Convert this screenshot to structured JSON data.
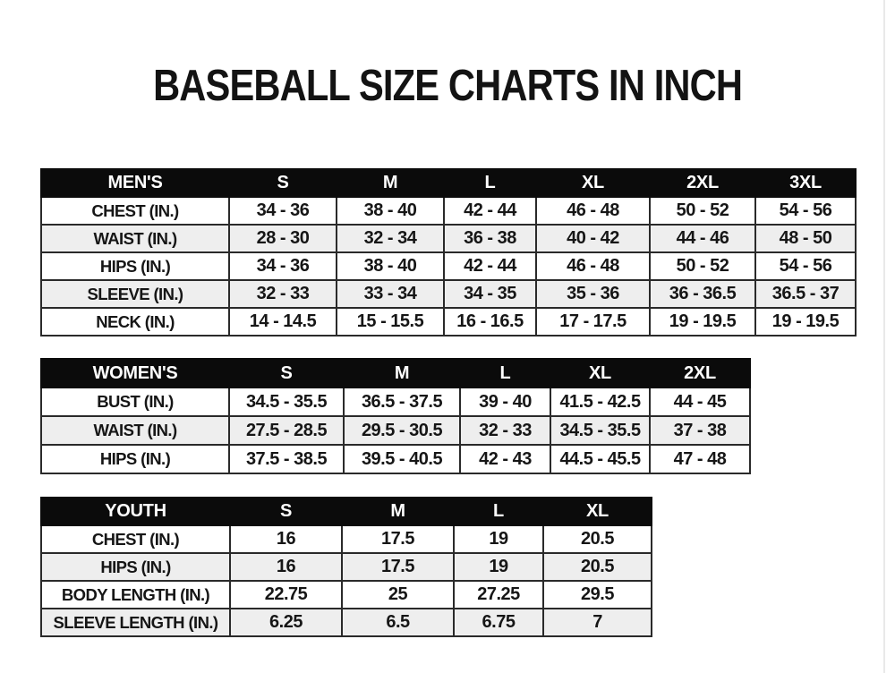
{
  "page": {
    "title": "BASEBALL SIZE CHARTS IN INCH"
  },
  "colors": {
    "header_bg": "#0b0b0b",
    "header_text": "#ffffff",
    "row_stripe": "#eeeeee",
    "border": "#2a2a2a",
    "text": "#161616",
    "background": "#ffffff"
  },
  "tables": [
    {
      "group": "MEN'S",
      "columns": [
        "MEN'S",
        "S",
        "M",
        "L",
        "XL",
        "2XL",
        "3XL"
      ],
      "rows": [
        [
          "CHEST (IN.)",
          "34 - 36",
          "38 - 40",
          "42 - 44",
          "46 - 48",
          "50 - 52",
          "54 - 56"
        ],
        [
          "WAIST (IN.)",
          "28 - 30",
          "32 - 34",
          "36 - 38",
          "40 - 42",
          "44 - 46",
          "48 - 50"
        ],
        [
          "HIPS (IN.)",
          "34 - 36",
          "38 - 40",
          "42 - 44",
          "46 - 48",
          "50 - 52",
          "54 - 56"
        ],
        [
          "SLEEVE (IN.)",
          "32 - 33",
          "33 - 34",
          "34 - 35",
          "35 - 36",
          "36 - 36.5",
          "36.5 - 37"
        ],
        [
          "NECK (IN.)",
          "14 - 14.5",
          "15 - 15.5",
          "16 - 16.5",
          "17 - 17.5",
          "19 - 19.5",
          "19 - 19.5"
        ]
      ]
    },
    {
      "group": "WOMEN'S",
      "columns": [
        "WOMEN'S",
        "S",
        "M",
        "L",
        "XL",
        "2XL"
      ],
      "rows": [
        [
          "BUST (IN.)",
          "34.5 - 35.5",
          "36.5 - 37.5",
          "39 - 40",
          "41.5 - 42.5",
          "44 - 45"
        ],
        [
          "WAIST (IN.)",
          "27.5 - 28.5",
          "29.5 - 30.5",
          "32 - 33",
          "34.5 - 35.5",
          "37 - 38"
        ],
        [
          "HIPS (IN.)",
          "37.5 - 38.5",
          "39.5 - 40.5",
          "42 - 43",
          "44.5 - 45.5",
          "47 - 48"
        ]
      ]
    },
    {
      "group": "YOUTH",
      "columns": [
        "YOUTH",
        "S",
        "M",
        "L",
        "XL"
      ],
      "rows": [
        [
          "CHEST (IN.)",
          "16",
          "17.5",
          "19",
          "20.5"
        ],
        [
          "HIPS (IN.)",
          "16",
          "17.5",
          "19",
          "20.5"
        ],
        [
          "BODY LENGTH (IN.)",
          "22.75",
          "25",
          "27.25",
          "29.5"
        ],
        [
          "SLEEVE LENGTH (IN.)",
          "6.25",
          "6.5",
          "6.75",
          "7"
        ]
      ]
    }
  ]
}
